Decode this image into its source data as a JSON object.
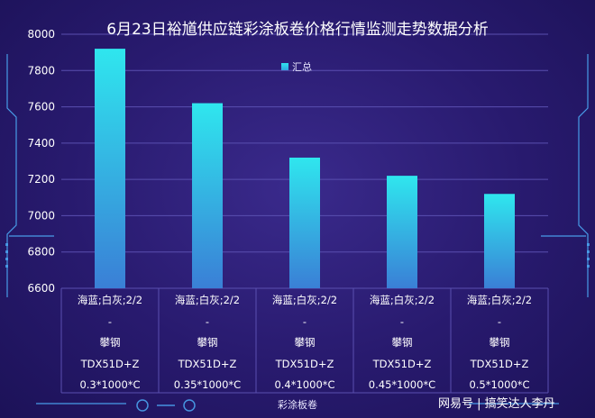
{
  "chart_data": {
    "type": "bar",
    "title": "6月23日裕馗供应链彩涂板卷价格行情监测走势数据分析",
    "xlabel": "彩涂板卷",
    "ylabel": "",
    "ylim": [
      6600,
      8000
    ],
    "yticks": [
      "8000",
      "7800",
      "7600",
      "7400",
      "7200",
      "7000",
      "6800",
      "6600"
    ],
    "categories": [
      [
        "海蓝;白灰;2/2",
        "-",
        "攀钢",
        "TDX51D+Z",
        "0.3*1000*C"
      ],
      [
        "海蓝;白灰;2/2",
        "-",
        "攀钢",
        "TDX51D+Z",
        "0.35*1000*C"
      ],
      [
        "海蓝;白灰;2/2",
        "-",
        "攀钢",
        "TDX51D+Z",
        "0.4*1000*C"
      ],
      [
        "海蓝;白灰;2/2",
        "-",
        "攀钢",
        "TDX51D+Z",
        "0.45*1000*C"
      ],
      [
        "海蓝;白灰;2/2",
        "-",
        "攀钢",
        "TDX51D+Z",
        "0.5*1000*C"
      ]
    ],
    "series": [
      {
        "name": "汇总",
        "values": [
          7920,
          7620,
          7320,
          7220,
          7120
        ]
      }
    ],
    "legend_position": "top-center",
    "grid": true,
    "bar_color_top": "#2fe6ee",
    "bar_color_bottom": "#3a7fd6"
  },
  "watermark": "网易号 | 搞笑达人李丹"
}
